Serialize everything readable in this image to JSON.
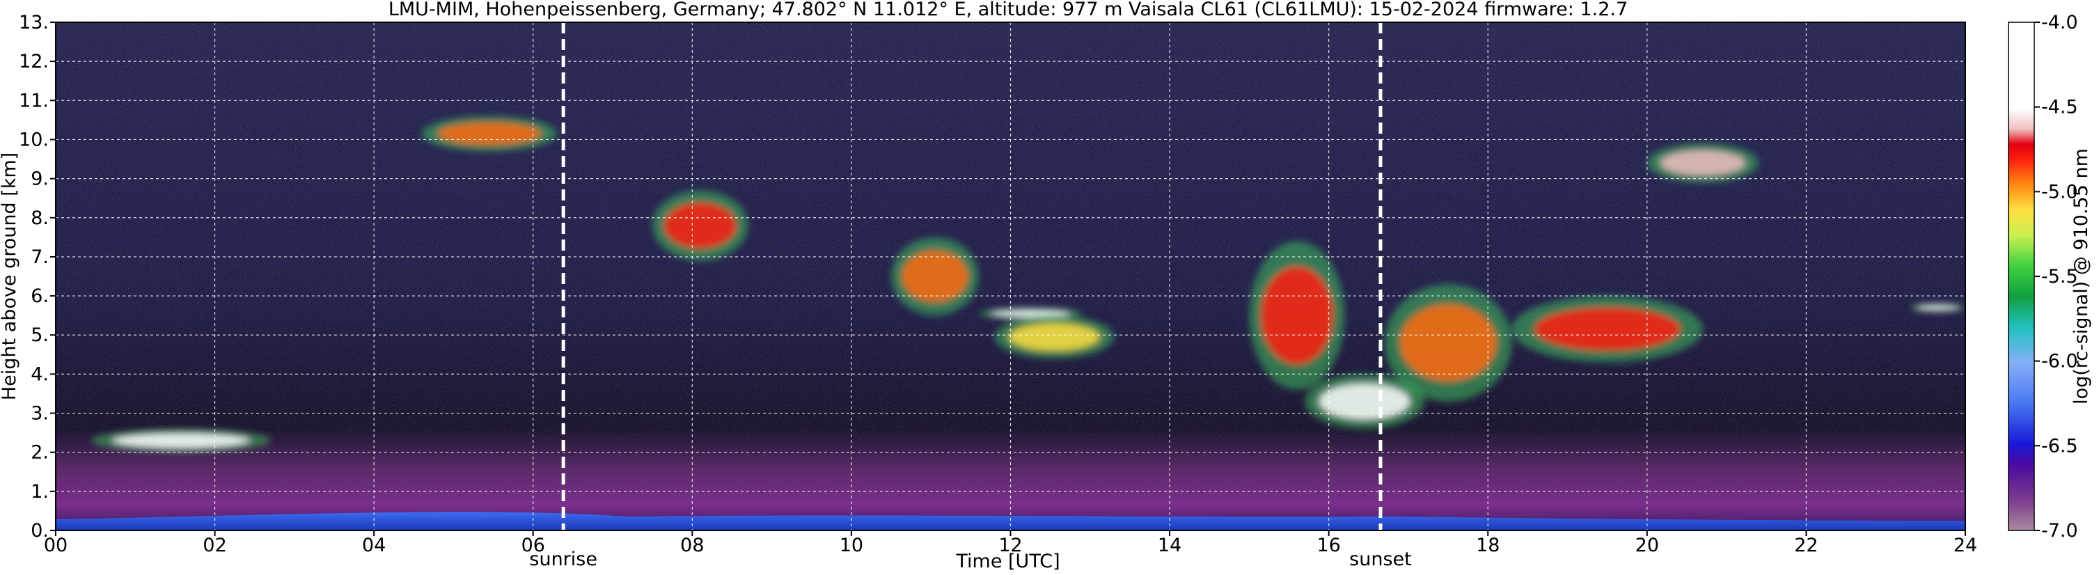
{
  "chart_data": {
    "type": "heatmap",
    "title": "LMU-MIM, Hohenpeissenberg, Germany; 47.802° N 11.012° E, altitude: 977 m    Vaisala CL61 (CL61LMU): 15-02-2024    firmware: 1.2.7",
    "xlabel": "Time [UTC]",
    "ylabel": "Height above ground [km]",
    "xlim": [
      0,
      24
    ],
    "ylim": [
      0,
      13
    ],
    "x_tick_labels": [
      "00",
      "02",
      "04",
      "06",
      "08",
      "10",
      "12",
      "14",
      "16",
      "18",
      "20",
      "22",
      "24"
    ],
    "y_tick_labels": [
      "0.",
      "1.",
      "2.",
      "3.",
      "4.",
      "5.",
      "6.",
      "7.",
      "8.",
      "9.",
      "10.",
      "11.",
      "12.",
      "13."
    ],
    "grid": true,
    "colorbar": {
      "label": "log(rc-signal) @ 910.55 nm",
      "range": [
        -7.0,
        -4.0
      ],
      "tick_values": [
        -4.0,
        -4.5,
        -5.0,
        -5.5,
        -6.0,
        -6.5,
        -7.0
      ],
      "tick_labels": [
        "-4.0",
        "-4.5",
        "-5.0",
        "-5.5",
        "-6.0",
        "-6.5",
        "-7.0"
      ]
    },
    "markers": [
      {
        "label": "sunrise",
        "x_hours": 6.38
      },
      {
        "label": "sunset",
        "x_hours": 16.65
      }
    ],
    "features": [
      {
        "t_start": 0.45,
        "t_end": 2.7,
        "h_base_km": 2.0,
        "h_top_km": 2.6,
        "level": -4.1
      },
      {
        "t_start": 4.6,
        "t_end": 6.3,
        "h_base_km": 9.7,
        "h_top_km": 10.6,
        "level": -5.1
      },
      {
        "t_start": 7.5,
        "t_end": 8.7,
        "h_base_km": 6.9,
        "h_top_km": 8.7,
        "level": -5.0
      },
      {
        "t_start": 10.5,
        "t_end": 11.6,
        "h_base_km": 5.5,
        "h_top_km": 7.5,
        "level": -5.1
      },
      {
        "t_start": 11.6,
        "t_end": 12.9,
        "h_base_km": 5.4,
        "h_top_km": 5.7,
        "level": -4.1
      },
      {
        "t_start": 11.8,
        "t_end": 13.3,
        "h_base_km": 4.4,
        "h_top_km": 5.5,
        "level": -5.2
      },
      {
        "t_start": 15.0,
        "t_end": 16.2,
        "h_base_km": 3.6,
        "h_top_km": 7.4,
        "level": -5.0
      },
      {
        "t_start": 15.7,
        "t_end": 17.2,
        "h_base_km": 2.6,
        "h_top_km": 4.0,
        "level": -4.3
      },
      {
        "t_start": 16.7,
        "t_end": 18.3,
        "h_base_km": 3.3,
        "h_top_km": 6.3,
        "level": -5.1
      },
      {
        "t_start": 18.3,
        "t_end": 20.7,
        "h_base_km": 4.3,
        "h_top_km": 6.0,
        "level": -5.0
      },
      {
        "t_start": 20.0,
        "t_end": 21.4,
        "h_base_km": 8.9,
        "h_top_km": 9.9,
        "level": -4.9
      },
      {
        "t_start": 23.3,
        "t_end": 24.0,
        "h_base_km": 5.6,
        "h_top_km": 5.8,
        "level": -4.2
      },
      {
        "t_start": 0.0,
        "t_end": 24.0,
        "h_base_km": 0.0,
        "h_top_km": 0.3,
        "level": -6.5
      }
    ]
  }
}
